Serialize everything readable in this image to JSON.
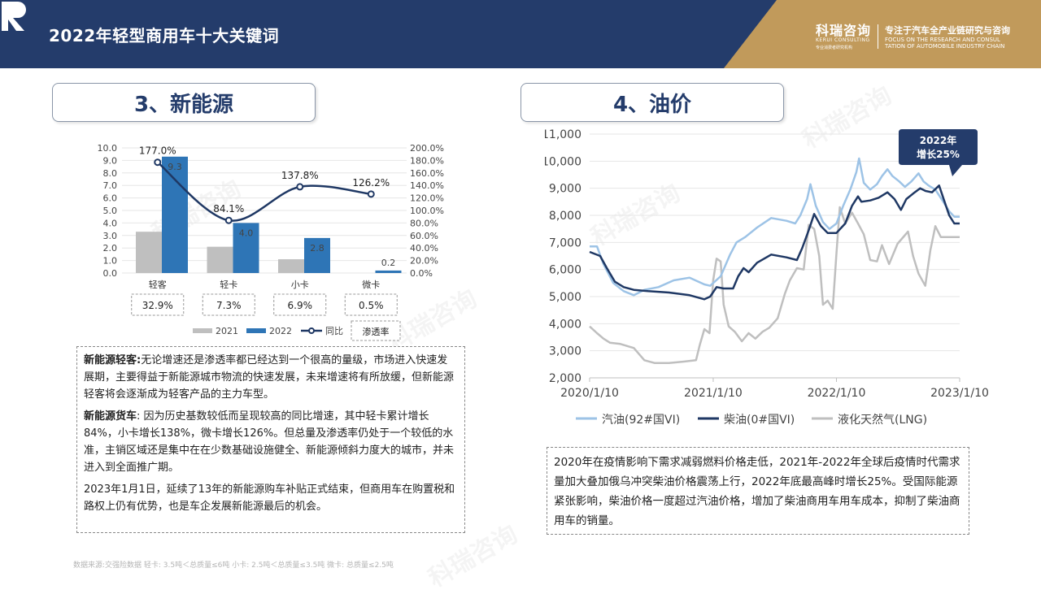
{
  "header": {
    "title": "2022年轻型商用车十大关键词",
    "logo_cn": "科瑞咨询",
    "logo_en": "KERUI CONSULTING",
    "logo_tiny": "专业消费者研究机构",
    "tagline": "专注于汽车全产业链研究与咨询",
    "tagline_en_1": "FOCUS ON THE RESEARCH AND CONSUL",
    "tagline_en_2": "TATION OF AUTOMOBILE INDUSTRY CHAIN",
    "colors": {
      "navy": "#243c6b",
      "gold": "#c19a5b"
    }
  },
  "watermark": "科瑞咨询",
  "left": {
    "section_title": "3、新能源",
    "paragraphs": [
      {
        "bold": "新能源轻客:",
        "text": "无论增速还是渗透率都已经达到一个很高的量级，市场进入快速发展期，主要得益于新能源城市物流的快速发展，未来增速将有所放缓，但新能源轻客将会逐渐成为轻客产品的主力车型。"
      },
      {
        "bold": "新能源货车",
        "text": ": 因为历史基数较低而呈现较高的同比增速，其中轻卡累计增长84%，小卡增长138%，微卡增长126%。但总量及渗透率仍处于一个较低的水准，主销区域还是集中在在少数基础设施健全、新能源倾斜力度大的城市，并未进入到全面推广期。"
      },
      {
        "bold": "",
        "text": "2023年1月1日，延续了13年的新能源购车补贴正式结束，但商用车在购置税和路权上仍有优势，也是车企发展新能源最后的机会。"
      }
    ]
  },
  "right": {
    "section_title": "4、油价",
    "callout": [
      "2022年",
      "增长25%"
    ],
    "paragraph": "2020年在疫情影响下需求减弱燃料价格走低，2021年-2022年全球后疫情时代需求量加大叠加俄乌冲突柴油价格震荡上行，2022年底最高峰时增长25%。受国际能源紧张影响，柴油价格一度超过汽油价格，增加了柴油商用车用车成本，抑制了柴油商用车的销量。"
  },
  "footer": "数据来源:交强险数据 轻卡: 3.5吨＜总质量≤6吨 小卡: 2.5吨＜总质量≤3.5吨 微卡: 总质量≤2.5吨",
  "chart_data": [
    {
      "type": "bar",
      "categories": [
        "轻客",
        "轻卡",
        "小卡",
        "微卡"
      ],
      "series": [
        {
          "name": "2021",
          "type": "bar",
          "values": [
            3.3,
            2.1,
            1.1,
            0.0
          ],
          "color": "#bfbfbf"
        },
        {
          "name": "2022",
          "type": "bar",
          "values": [
            9.3,
            4.0,
            2.8,
            0.2
          ],
          "color": "#2e75b6",
          "labels": [
            "9.3",
            "4.0",
            "2.8",
            "0.2"
          ]
        },
        {
          "name": "同比",
          "type": "line",
          "axis": "right",
          "values": [
            177.0,
            84.1,
            137.8,
            126.2
          ],
          "labels": [
            "177.0%",
            "84.1%",
            "137.8%",
            "126.2%"
          ],
          "color": "#1f3864"
        }
      ],
      "penetration_label": "渗透率",
      "penetration": [
        "32.9%",
        "7.3%",
        "6.9%",
        "0.5%"
      ],
      "y_left": {
        "min": 0,
        "max": 10,
        "ticks": [
          "0.0",
          "1.0",
          "2.0",
          "3.0",
          "4.0",
          "5.0",
          "6.0",
          "7.0",
          "8.0",
          "9.0",
          "10.0"
        ]
      },
      "y_right": {
        "min": 0,
        "max": 200,
        "ticks": [
          "0.0%",
          "20.0%",
          "40.0%",
          "60.0%",
          "80.0%",
          "100.0%",
          "120.0%",
          "140.0%",
          "160.0%",
          "180.0%",
          "200.0%"
        ]
      },
      "grid": true,
      "legend": "bottom"
    },
    {
      "type": "line",
      "y_min": 2000,
      "y_max": 11000,
      "y_ticks": [
        "2,000",
        "3,000",
        "4,000",
        "5,000",
        "6,000",
        "7,000",
        "8,000",
        "9,000",
        "10,000",
        "11,000"
      ],
      "x_range": [
        "2020/1/10",
        "2023/1/10"
      ],
      "x_ticks": [
        "2020/1/10",
        "2021/1/10",
        "2022/1/10",
        "2023/1/10"
      ],
      "grid": true,
      "legend": "bottom",
      "series": [
        {
          "name": "汽油(92#国VI)",
          "color": "#9dc3e6",
          "width": 2.5,
          "points": [
            [
              "2020/1/10",
              6850
            ],
            [
              "2020/2/1",
              6850
            ],
            [
              "2020/2/20",
              6200
            ],
            [
              "2020/3/20",
              5500
            ],
            [
              "2020/4/20",
              5200
            ],
            [
              "2020/5/20",
              5050
            ],
            [
              "2020/6/20",
              5250
            ],
            [
              "2020/8/1",
              5350
            ],
            [
              "2020/9/15",
              5600
            ],
            [
              "2020/11/1",
              5700
            ],
            [
              "2020/12/15",
              5450
            ],
            [
              "2021/1/1",
              5400
            ],
            [
              "2021/2/1",
              5750
            ],
            [
              "2021/3/1",
              6550
            ],
            [
              "2021/3/20",
              7000
            ],
            [
              "2021/4/15",
              7200
            ],
            [
              "2021/5/20",
              7550
            ],
            [
              "2021/7/1",
              7900
            ],
            [
              "2021/8/15",
              7800
            ],
            [
              "2021/9/10",
              7700
            ],
            [
              "2021/9/25",
              8000
            ],
            [
              "2021/10/15",
              8600
            ],
            [
              "2021/10/25",
              9150
            ],
            [
              "2021/11/10",
              8350
            ],
            [
              "2021/12/1",
              7750
            ],
            [
              "2021/12/20",
              7500
            ],
            [
              "2022/1/10",
              7700
            ],
            [
              "2022/1/30",
              8350
            ],
            [
              "2022/2/20",
              8950
            ],
            [
              "2022/3/10",
              9600
            ],
            [
              "2022/3/18",
              10100
            ],
            [
              "2022/4/1",
              9200
            ],
            [
              "2022/4/20",
              8950
            ],
            [
              "2022/5/10",
              9150
            ],
            [
              "2022/5/25",
              9450
            ],
            [
              "2022/6/10",
              9700
            ],
            [
              "2022/6/25",
              9450
            ],
            [
              "2022/7/15",
              9250
            ],
            [
              "2022/8/1",
              9050
            ],
            [
              "2022/8/20",
              9250
            ],
            [
              "2022/9/10",
              9550
            ],
            [
              "2022/9/25",
              9250
            ],
            [
              "2022/10/10",
              9100
            ],
            [
              "2022/10/30",
              8950
            ],
            [
              "2022/11/20",
              8550
            ],
            [
              "2022/12/10",
              8150
            ],
            [
              "2022/12/25",
              7950
            ],
            [
              "2023/1/10",
              7950
            ]
          ]
        },
        {
          "name": "柴油(0#国VI)",
          "color": "#1f3864",
          "width": 2.5,
          "points": [
            [
              "2020/1/10",
              6650
            ],
            [
              "2020/2/10",
              6500
            ],
            [
              "2020/3/1",
              6050
            ],
            [
              "2020/3/25",
              5550
            ],
            [
              "2020/4/20",
              5350
            ],
            [
              "2020/5/20",
              5250
            ],
            [
              "2020/7/1",
              5200
            ],
            [
              "2020/9/1",
              5150
            ],
            [
              "2020/11/1",
              5050
            ],
            [
              "2020/12/15",
              4900
            ],
            [
              "2021/1/1",
              5000
            ],
            [
              "2021/1/20",
              5350
            ],
            [
              "2021/2/10",
              5300
            ],
            [
              "2021/3/10",
              5300
            ],
            [
              "2021/3/25",
              5750
            ],
            [
              "2021/4/10",
              6050
            ],
            [
              "2021/4/25",
              5900
            ],
            [
              "2021/5/20",
              6250
            ],
            [
              "2021/7/1",
              6550
            ],
            [
              "2021/8/15",
              6450
            ],
            [
              "2021/9/15",
              6350
            ],
            [
              "2021/10/1",
              6800
            ],
            [
              "2021/10/20",
              7450
            ],
            [
              "2021/11/5",
              8050
            ],
            [
              "2021/11/25",
              7600
            ],
            [
              "2021/12/15",
              7350
            ],
            [
              "2022/1/10",
              7350
            ],
            [
              "2022/2/5",
              7700
            ],
            [
              "2022/2/25",
              8350
            ],
            [
              "2022/3/15",
              8700
            ],
            [
              "2022/3/25",
              8500
            ],
            [
              "2022/4/20",
              8550
            ],
            [
              "2022/5/15",
              8650
            ],
            [
              "2022/6/10",
              8850
            ],
            [
              "2022/7/1",
              8600
            ],
            [
              "2022/7/20",
              8200
            ],
            [
              "2022/8/5",
              8600
            ],
            [
              "2022/8/25",
              8800
            ],
            [
              "2022/9/15",
              9000
            ],
            [
              "2022/10/1",
              8900
            ],
            [
              "2022/10/20",
              8850
            ],
            [
              "2022/11/10",
              9100
            ],
            [
              "2022/11/25",
              8550
            ],
            [
              "2022/12/10",
              8000
            ],
            [
              "2022/12/25",
              7700
            ],
            [
              "2023/1/10",
              7700
            ]
          ]
        },
        {
          "name": "液化天然气(LNG)",
          "color": "#bfbfbf",
          "width": 2.5,
          "points": [
            [
              "2020/1/10",
              3900
            ],
            [
              "2020/2/1",
              3650
            ],
            [
              "2020/2/20",
              3450
            ],
            [
              "2020/3/10",
              3300
            ],
            [
              "2020/4/10",
              3250
            ],
            [
              "2020/5/20",
              3100
            ],
            [
              "2020/6/20",
              2650
            ],
            [
              "2020/7/20",
              2550
            ],
            [
              "2020/9/1",
              2550
            ],
            [
              "2020/10/15",
              2600
            ],
            [
              "2020/11/20",
              2650
            ],
            [
              "2020/12/1",
              3200
            ],
            [
              "2020/12/15",
              3800
            ],
            [
              "2020/12/30",
              3650
            ],
            [
              "2021/1/10",
              5600
            ],
            [
              "2021/1/20",
              6400
            ],
            [
              "2021/2/1",
              6300
            ],
            [
              "2021/2/10",
              4700
            ],
            [
              "2021/2/25",
              3900
            ],
            [
              "2021/3/15",
              3700
            ],
            [
              "2021/4/5",
              3350
            ],
            [
              "2021/4/25",
              3650
            ],
            [
              "2021/5/15",
              3450
            ],
            [
              "2021/6/5",
              3700
            ],
            [
              "2021/6/25",
              3850
            ],
            [
              "2021/7/20",
              4200
            ],
            [
              "2021/8/10",
              5100
            ],
            [
              "2021/8/25",
              5600
            ],
            [
              "2021/9/15",
              6050
            ],
            [
              "2021/10/5",
              6000
            ],
            [
              "2021/10/20",
              7650
            ],
            [
              "2021/11/5",
              7500
            ],
            [
              "2021/11/20",
              6500
            ],
            [
              "2021/12/1",
              4700
            ],
            [
              "2021/12/15",
              4850
            ],
            [
              "2021/12/30",
              4550
            ],
            [
              "2022/1/10",
              6600
            ],
            [
              "2022/1/20",
              8300
            ],
            [
              "2022/2/5",
              7700
            ],
            [
              "2022/2/25",
              8100
            ],
            [
              "2022/3/15",
              7700
            ],
            [
              "2022/4/1",
              7300
            ],
            [
              "2022/4/20",
              6350
            ],
            [
              "2022/5/10",
              6300
            ],
            [
              "2022/5/25",
              6900
            ],
            [
              "2022/6/15",
              6200
            ],
            [
              "2022/7/10",
              6950
            ],
            [
              "2022/8/10",
              7400
            ],
            [
              "2022/8/25",
              6500
            ],
            [
              "2022/9/10",
              5850
            ],
            [
              "2022/9/30",
              5400
            ],
            [
              "2022/10/15",
              6700
            ],
            [
              "2022/10/30",
              7600
            ],
            [
              "2022/11/15",
              7200
            ],
            [
              "2023/1/10",
              7200
            ]
          ]
        }
      ]
    }
  ]
}
